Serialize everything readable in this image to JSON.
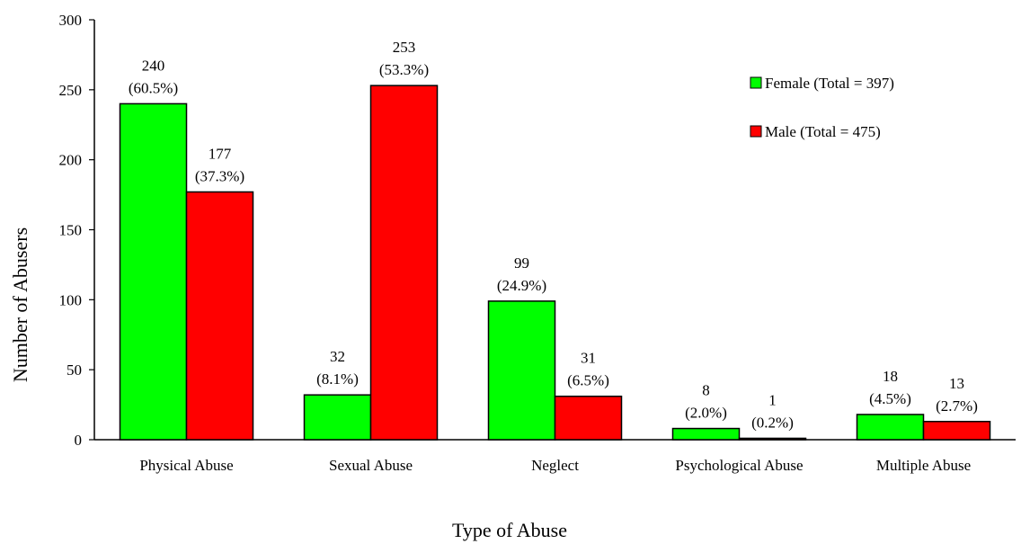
{
  "chart_data": {
    "type": "bar",
    "title": "",
    "xlabel": "Type of Abuse",
    "ylabel": "Number of Abusers",
    "ylim": [
      0,
      300
    ],
    "yticks": [
      0,
      50,
      100,
      150,
      200,
      250,
      300
    ],
    "categories": [
      "Physical Abuse",
      "Sexual Abuse",
      "Neglect",
      "Psychological Abuse",
      "Multiple Abuse"
    ],
    "series": [
      {
        "name": "Female (Total = 397)",
        "color": "#00ff00",
        "values": [
          240,
          32,
          99,
          8,
          18
        ],
        "percent_labels": [
          "(60.5%)",
          "(8.1%)",
          "(24.9%)",
          "(2.0%)",
          "(4.5%)"
        ]
      },
      {
        "name": "Male (Total = 475)",
        "color": "#ff0000",
        "values": [
          177,
          253,
          31,
          1,
          13
        ],
        "percent_labels": [
          "(37.3%)",
          "(53.3%)",
          "(6.5%)",
          "(0.2%)",
          "(2.7%)"
        ]
      }
    ],
    "legend_position": "top-right",
    "grid": false
  }
}
